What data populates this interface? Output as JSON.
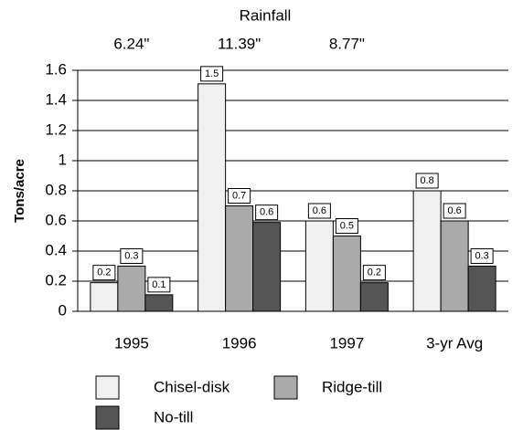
{
  "chart_data": {
    "type": "bar",
    "title": "Rainfall",
    "annotations": [
      "6.24\"",
      "11.39\"",
      "8.77\""
    ],
    "y_label": "Tons/acre",
    "categories": [
      "1995",
      "1996",
      "1997",
      "3-yr Avg"
    ],
    "series": [
      {
        "name": "Chisel-disk",
        "color": "#f0f0f0",
        "values": [
          0.19,
          1.51,
          0.6,
          0.8
        ],
        "value_labels": [
          "0.2",
          "1.5",
          "0.6",
          "0.8"
        ]
      },
      {
        "name": "Ridge-till",
        "color": "#aaaaaa",
        "values": [
          0.3,
          0.7,
          0.5,
          0.6
        ],
        "value_labels": [
          "0.3",
          "0.7",
          "0.5",
          "0.6"
        ]
      },
      {
        "name": "No-till",
        "color": "#555555",
        "values": [
          0.11,
          0.59,
          0.19,
          0.3
        ],
        "value_labels": [
          "0.1",
          "0.6",
          "0.2",
          "0.3"
        ]
      }
    ],
    "ylim": [
      0,
      1.6
    ],
    "yticks": [
      0,
      0.2,
      0.4,
      0.6,
      0.8,
      1,
      1.2,
      1.4,
      1.6
    ],
    "grid": true
  }
}
